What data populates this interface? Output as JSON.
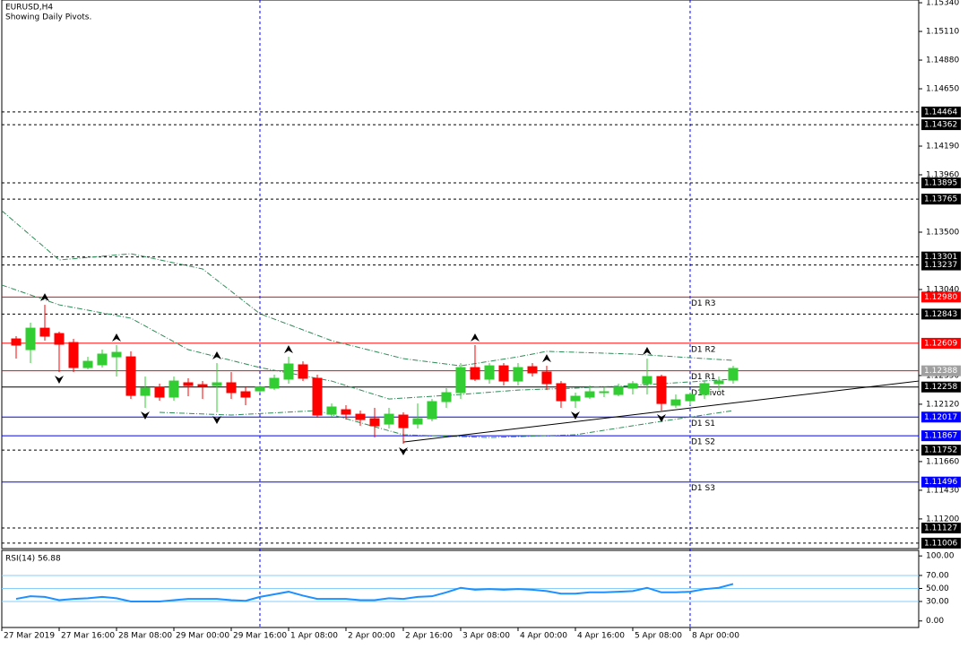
{
  "chart_data": [
    {
      "type": "candlestick",
      "title": "EURUSD,H4",
      "subtitle": "Showing Daily Pivots.",
      "up_color": "#32cd32",
      "down_color": "#ff0000",
      "xlim": [
        -1,
        62.94
      ],
      "ylim": [
        1.10962,
        1.15362
      ],
      "open": [
        1.12644,
        1.12558,
        1.1273,
        1.12687,
        1.12615,
        1.12414,
        1.12436,
        1.125,
        1.125,
        1.12191,
        1.12256,
        1.12177,
        1.12292,
        1.12277,
        1.1227,
        1.12292,
        1.1222,
        1.12227,
        1.12249,
        1.12321,
        1.12436,
        1.12328,
        1.1204,
        1.12076,
        1.1204,
        1.12004,
        1.11961,
        1.12033,
        1.11961,
        1.12004,
        1.12141,
        1.12213,
        1.12414,
        1.12321,
        1.12428,
        1.12306,
        1.12421,
        1.12378,
        1.12285,
        1.12148,
        1.12177,
        1.12213,
        1.12198,
        1.12249,
        1.12285,
        1.12342,
        1.12112,
        1.12148,
        1.12198,
        1.12285,
        1.12313
      ],
      "high": [
        1.12666,
        1.12774,
        1.12917,
        1.12702,
        1.12644,
        1.125,
        1.12558,
        1.12594,
        1.12544,
        1.12342,
        1.12285,
        1.12342,
        1.12328,
        1.12306,
        1.1245,
        1.12378,
        1.12256,
        1.1227,
        1.12357,
        1.125,
        1.12464,
        1.12357,
        1.12126,
        1.12112,
        1.12069,
        1.12091,
        1.12091,
        1.12055,
        1.12126,
        1.12162,
        1.12249,
        1.1245,
        1.12594,
        1.1245,
        1.1245,
        1.1245,
        1.1245,
        1.12428,
        1.12306,
        1.12213,
        1.1227,
        1.12256,
        1.12285,
        1.12306,
        1.12486,
        1.12357,
        1.12198,
        1.12213,
        1.12306,
        1.12342,
        1.12428
      ],
      "low": [
        1.12486,
        1.1245,
        1.1263,
        1.12378,
        1.12378,
        1.124,
        1.12414,
        1.12342,
        1.12162,
        1.12091,
        1.12148,
        1.12148,
        1.12184,
        1.12162,
        1.12055,
        1.12162,
        1.12112,
        1.12213,
        1.12234,
        1.12285,
        1.12306,
        1.12011,
        1.12019,
        1.11997,
        1.11947,
        1.11853,
        1.11925,
        1.11803,
        1.11925,
        1.11983,
        1.12091,
        1.12162,
        1.12306,
        1.12285,
        1.1227,
        1.1227,
        1.12342,
        1.12234,
        1.12091,
        1.12091,
        1.12162,
        1.12177,
        1.12184,
        1.12198,
        1.12198,
        1.12069,
        1.12091,
        1.12112,
        1.12162,
        1.12234,
        1.12285
      ],
      "close": [
        1.12594,
        1.1273,
        1.12666,
        1.12601,
        1.12414,
        1.12464,
        1.12522,
        1.12536,
        1.12191,
        1.12249,
        1.12177,
        1.12306,
        1.1227,
        1.12263,
        1.12292,
        1.12213,
        1.12177,
        1.12256,
        1.12328,
        1.12443,
        1.12328,
        1.12033,
        1.12098,
        1.1204,
        1.11997,
        1.11947,
        1.1204,
        1.11932,
        1.12004,
        1.12141,
        1.12213,
        1.12414,
        1.12321,
        1.12428,
        1.12306,
        1.12414,
        1.12371,
        1.12285,
        1.12148,
        1.12184,
        1.1222,
        1.1222,
        1.12256,
        1.12285,
        1.12342,
        1.12126,
        1.12155,
        1.12198,
        1.12285,
        1.12306,
        1.12407
      ],
      "bands": [
        {
          "color": "#2e8b57",
          "x": [
            -1,
            3,
            8,
            13,
            17,
            22,
            27,
            31,
            35,
            37,
            43,
            50
          ],
          "values": [
            1.13672,
            1.13277,
            1.13327,
            1.13205,
            1.12846,
            1.1263,
            1.12486,
            1.12428,
            1.125,
            1.12544,
            1.12522,
            1.12472
          ]
        },
        {
          "color": "#2e8b57",
          "x": [
            -1,
            3,
            8,
            12,
            17,
            22,
            26,
            31,
            35,
            39,
            43,
            50
          ],
          "values": [
            1.13076,
            1.12917,
            1.1281,
            1.12558,
            1.12414,
            1.12306,
            1.12162,
            1.12198,
            1.12234,
            1.12249,
            1.1227,
            1.12321
          ]
        },
        {
          "color": "#2e8b57",
          "x": [
            10,
            15,
            21,
            27,
            33,
            39,
            45,
            50
          ],
          "values": [
            1.12055,
            1.12033,
            1.12069,
            1.11875,
            1.11853,
            1.11875,
            1.11983,
            1.12069
          ]
        }
      ],
      "trendline": {
        "color": "#000000",
        "x": [
          27,
          62.94
        ],
        "values": [
          1.11817,
          1.12306
        ]
      },
      "fractals_up": {
        "x": [
          2,
          7,
          14,
          19,
          32,
          37,
          44
        ],
        "values": [
          1.12917,
          1.12594,
          1.1245,
          1.125,
          1.12594,
          1.12428,
          1.12486
        ]
      },
      "fractals_down": {
        "x": [
          3,
          9,
          14,
          27,
          39,
          45
        ],
        "values": [
          1.12378,
          1.12091,
          1.12055,
          1.11803,
          1.12091,
          1.12069
        ]
      },
      "levels": [
        {
          "value": 1.14464,
          "label": "1.14464",
          "color": "#000000",
          "style": "dash",
          "box": "#000000"
        },
        {
          "value": 1.14362,
          "label": "1.14362",
          "color": "#000000",
          "style": "dash",
          "box": "#000000"
        },
        {
          "value": 1.13895,
          "label": "1.13895",
          "color": "#000000",
          "style": "dash",
          "box": "#000000"
        },
        {
          "value": 1.13765,
          "label": "1.13765",
          "color": "#000000",
          "style": "dash",
          "box": "#000000"
        },
        {
          "value": 1.13301,
          "label": "1.13301",
          "color": "#000000",
          "style": "dash",
          "box": "#000000"
        },
        {
          "value": 1.13237,
          "label": "1.13237",
          "color": "#000000",
          "style": "dash",
          "box": "#000000"
        },
        {
          "value": 1.1298,
          "label": "1.12980",
          "color": "#ff0000",
          "style": "solid",
          "box": "#ff0000",
          "name": "D1 R3"
        },
        {
          "value": 1.12843,
          "label": "1.12843",
          "color": "#000000",
          "style": "dash",
          "box": "#000000"
        },
        {
          "value": 1.12609,
          "label": "1.12609",
          "color": "#ff0000",
          "style": "solid",
          "box": "#ff0000",
          "name": "D1 R2"
        },
        {
          "value": 1.12388,
          "label": "1.12388",
          "color": "#ff0000",
          "style": "solid",
          "box": "#a0a0a0",
          "name": "D1 R1"
        },
        {
          "value": 1.12258,
          "label": "1.12258",
          "color": "#000000",
          "style": "solid",
          "box": "#000000",
          "name": "D1 Pivot"
        },
        {
          "value": 1.12017,
          "label": "1.12017",
          "color": "#0000ff",
          "style": "solid",
          "box": "#0000ff",
          "name": "D1 S1"
        },
        {
          "value": 1.11867,
          "label": "1.11867",
          "color": "#0000ff",
          "style": "solid",
          "box": "#0000ff",
          "name": "D1 S2"
        },
        {
          "value": 1.11752,
          "label": "1.11752",
          "color": "#000000",
          "style": "dash",
          "box": "#000000"
        },
        {
          "value": 1.11496,
          "label": "1.11496",
          "color": "#0000ff",
          "style": "solid",
          "box": "#0000ff",
          "name": "D1 S3"
        },
        {
          "value": 1.11127,
          "label": "1.11127",
          "color": "#000000",
          "style": "dash",
          "box": "#000000"
        },
        {
          "value": 1.11006,
          "label": "1.11006",
          "color": "#000000",
          "style": "dash",
          "box": "#000000"
        }
      ],
      "yticks": [
        {
          "value": 1.1534,
          "label": "1.15340"
        },
        {
          "value": 1.1511,
          "label": "1.15110"
        },
        {
          "value": 1.1488,
          "label": "1.14880"
        },
        {
          "value": 1.1465,
          "label": "1.14650"
        },
        {
          "value": 1.1419,
          "label": "1.14190"
        },
        {
          "value": 1.1396,
          "label": "1.13960"
        },
        {
          "value": 1.135,
          "label": "1.13500"
        },
        {
          "value": 1.1304,
          "label": "1.13040"
        },
        {
          "value": 1.1235,
          "label": "1.12350"
        },
        {
          "value": 1.1212,
          "label": "1.12120"
        },
        {
          "value": 1.1166,
          "label": "1.11660"
        },
        {
          "value": 1.1143,
          "label": "1.11430"
        },
        {
          "value": 1.112,
          "label": "1.11200"
        }
      ],
      "xticks": [
        {
          "value": -1,
          "label": "27 Mar 2019"
        },
        {
          "value": 3,
          "label": "27 Mar 16:00"
        },
        {
          "value": 7,
          "label": "28 Mar 08:00"
        },
        {
          "value": 11,
          "label": "29 Mar 00:00"
        },
        {
          "value": 15,
          "label": "29 Mar 16:00"
        },
        {
          "value": 19,
          "label": "1 Apr 08:00"
        },
        {
          "value": 23,
          "label": "2 Apr 00:00"
        },
        {
          "value": 27,
          "label": "2 Apr 16:00"
        },
        {
          "value": 31,
          "label": "3 Apr 08:00"
        },
        {
          "value": 35,
          "label": "4 Apr 00:00"
        },
        {
          "value": 39,
          "label": "4 Apr 16:00"
        },
        {
          "value": 43,
          "label": "5 Apr 08:00"
        },
        {
          "value": 47,
          "label": "8 Apr 00:00"
        }
      ],
      "vlines": [
        17,
        47
      ]
    },
    {
      "type": "line",
      "title": "RSI(14) 56.88",
      "color": "#1e90ff",
      "values": [
        34,
        38,
        37,
        32,
        34,
        35,
        37,
        35,
        30,
        30,
        30,
        32,
        34,
        34,
        34,
        32,
        31,
        37,
        41,
        45,
        39,
        34,
        34,
        34,
        32,
        32,
        35,
        34,
        37,
        38,
        44,
        51,
        48,
        49,
        48,
        49,
        48,
        46,
        42,
        42,
        44,
        44,
        45,
        46,
        51,
        44,
        44,
        45,
        49,
        51,
        56.88
      ],
      "ylim": [
        -10,
        108.5
      ],
      "yticks": [
        {
          "value": 100,
          "label": "100.00"
        },
        {
          "value": 70,
          "label": "70.00"
        },
        {
          "value": 50,
          "label": "50.00"
        },
        {
          "value": 30,
          "label": "30.00"
        },
        {
          "value": 0,
          "label": "0.00"
        }
      ],
      "hlines": [
        70,
        50,
        30
      ],
      "hline_color": "#87cefa"
    }
  ]
}
